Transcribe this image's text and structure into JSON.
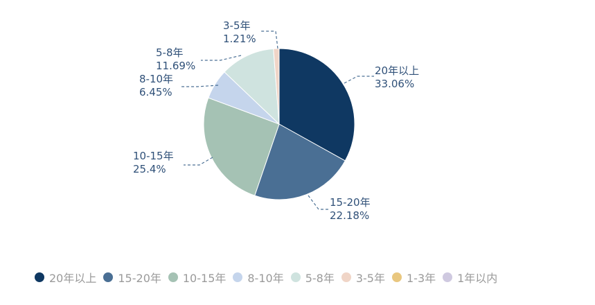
{
  "chart_data": {
    "type": "pie",
    "categories": [
      "20年以上",
      "15-20年",
      "10-15年",
      "8-10年",
      "5-8年",
      "3-5年",
      "1-3年",
      "1年以内"
    ],
    "values": [
      33.06,
      22.18,
      25.4,
      6.45,
      11.69,
      1.21,
      0,
      0
    ],
    "value_labels": [
      "33.06%",
      "22.18%",
      "25.4%",
      "6.45%",
      "11.69%",
      "1.21%",
      "",
      ""
    ],
    "colors": [
      "#0f3862",
      "#4a6f94",
      "#a5c2b4",
      "#c5d5ec",
      "#cfe3df",
      "#f0d5c7",
      "#e9c77f",
      "#cfc9e0"
    ],
    "legend_position": "bottom-left",
    "title": ""
  }
}
